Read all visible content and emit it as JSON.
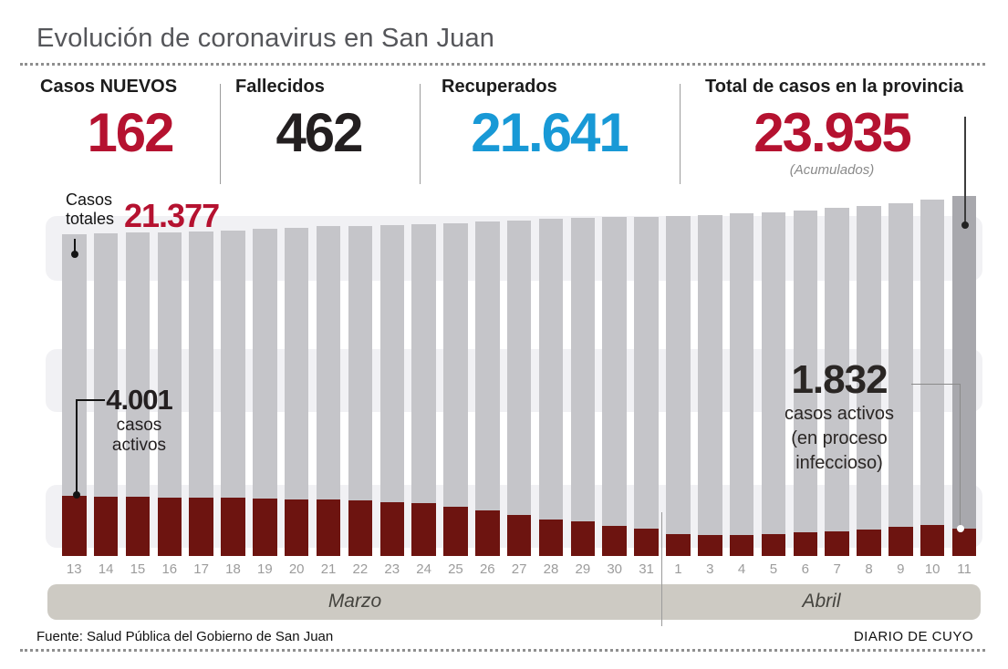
{
  "title": "Evolución de coronavirus en San Juan",
  "stats": [
    {
      "label": "Casos NUEVOS",
      "value": "162"
    },
    {
      "label": "Fallecidos",
      "value": "462"
    },
    {
      "label": "Recuperados",
      "value": "21.641"
    },
    {
      "label": "Total de casos en la provincia",
      "value": "23.935",
      "note": "(Acumulados)"
    }
  ],
  "labels": {
    "casos_totales_line1": "Casos",
    "casos_totales_line2": "totales",
    "casos_totales_value": "21.377",
    "activos_inicio_value": "4.001",
    "activos_inicio_line1": "casos",
    "activos_inicio_line2": "activos",
    "activos_actual_value": "1.832",
    "activos_actual_line1": "casos activos",
    "activos_actual_line2": "(en proceso",
    "activos_actual_line3": "infeccioso)"
  },
  "footer": {
    "source": "Fuente: Salud Pública del Gobierno de San Juan",
    "credit": "DIARIO DE CUYO"
  },
  "colors": {
    "red": "#b51230",
    "black": "#231f20",
    "blue": "#1899d6",
    "bar_gray": "#c5c5c9",
    "bar_gray_dark": "#a8a8ad",
    "bar_red": "#6d1410",
    "band_gray": "#f1f1f4",
    "month_band": "#cdcac3"
  },
  "chart_data": {
    "type": "bar",
    "title": "Evolución de coronavirus en San Juan",
    "categories": [
      "13",
      "14",
      "15",
      "16",
      "17",
      "18",
      "19",
      "20",
      "21",
      "22",
      "23",
      "24",
      "25",
      "26",
      "27",
      "28",
      "29",
      "30",
      "31",
      "1",
      "3",
      "4",
      "5",
      "6",
      "7",
      "8",
      "9",
      "10",
      "11"
    ],
    "months": [
      {
        "label": "Marzo",
        "days": 19
      },
      {
        "label": "Abril",
        "days": 10
      }
    ],
    "series": [
      {
        "name": "Casos totales",
        "color": "#c5c5c9",
        "values": [
          21377,
          21430,
          21460,
          21490,
          21550,
          21610,
          21730,
          21820,
          21900,
          21930,
          22000,
          22060,
          22120,
          22210,
          22300,
          22390,
          22450,
          22510,
          22540,
          22570,
          22650,
          22750,
          22850,
          22950,
          23100,
          23240,
          23400,
          23660,
          23935
        ]
      },
      {
        "name": "Casos activos",
        "color": "#6d1410",
        "values": [
          4001,
          3940,
          3930,
          3900,
          3870,
          3870,
          3810,
          3750,
          3750,
          3690,
          3570,
          3510,
          3270,
          3030,
          2720,
          2420,
          2280,
          2020,
          1820,
          1450,
          1370,
          1410,
          1450,
          1560,
          1620,
          1750,
          1920,
          2080,
          1832
        ]
      }
    ],
    "ylim": [
      0,
      24200
    ],
    "grid": "horizontal-bands",
    "legend_position": "none",
    "highlight_last_bar": true,
    "annotations": [
      {
        "text": "Casos totales",
        "value": "21.377",
        "target_day": "13",
        "series": "Casos totales"
      },
      {
        "text": "casos activos",
        "value": "4.001",
        "target_day": "13",
        "series": "Casos activos"
      },
      {
        "text": "casos activos (en proceso infeccioso)",
        "value": "1.832",
        "target_day": "11",
        "series": "Casos activos"
      },
      {
        "text": "Total de casos en la provincia (Acumulados)",
        "value": "23.935",
        "target_day": "11",
        "series": "Casos totales"
      }
    ]
  }
}
